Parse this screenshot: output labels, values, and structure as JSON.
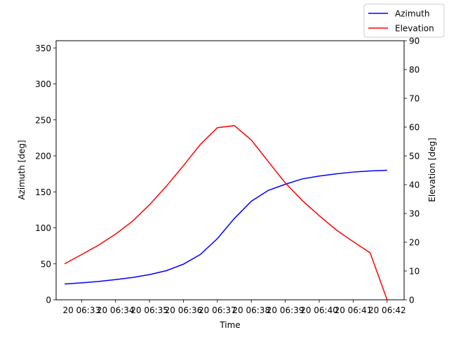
{
  "chart_data": {
    "type": "line",
    "xlabel": "Time",
    "ylabel_left": "Azimuth [deg]",
    "ylabel_right": "Elevation [deg]",
    "x": [
      "20 06:32:30",
      "20 06:33:00",
      "20 06:33:30",
      "20 06:34:00",
      "20 06:34:30",
      "20 06:35:00",
      "20 06:35:30",
      "20 06:36:00",
      "20 06:36:30",
      "20 06:37:00",
      "20 06:37:30",
      "20 06:38:00",
      "20 06:38:30",
      "20 06:39:00",
      "20 06:39:30",
      "20 06:40:00",
      "20 06:40:30",
      "20 06:41:00",
      "20 06:41:30",
      "20 06:42:00"
    ],
    "x_ticks": [
      "20 06:33",
      "20 06:34",
      "20 06:35",
      "20 06:36",
      "20 06:37",
      "20 06:38",
      "20 06:39",
      "20 06:40",
      "20 06:41",
      "20 06:42"
    ],
    "xlim": [
      "20 06:32:15",
      "20 06:42:30"
    ],
    "ylim_left": [
      0,
      360
    ],
    "ylim_right": [
      0,
      90
    ],
    "yticks_left": [
      0,
      50,
      100,
      150,
      200,
      250,
      300,
      350
    ],
    "yticks_right": [
      0,
      10,
      20,
      30,
      40,
      50,
      60,
      70,
      80,
      90
    ],
    "grid": false,
    "legend_position": "top-right",
    "series": [
      {
        "name": "Azimuth",
        "axis": "left",
        "color": "#0000ff",
        "values": [
          22,
          23.5,
          25.5,
          28,
          31,
          35,
          40.5,
          49.5,
          63,
          85,
          113,
          137,
          152,
          160.5,
          168,
          172,
          175,
          177.5,
          179,
          180
        ]
      },
      {
        "name": "Elevation",
        "axis": "right",
        "color": "#ff0000",
        "values": [
          12.5,
          15.7,
          19,
          22.8,
          27.3,
          33,
          39.5,
          46.6,
          54,
          59.8,
          60.5,
          55.5,
          48,
          40.6,
          34.5,
          29.2,
          24.3,
          20.2,
          16.3,
          0
        ]
      }
    ]
  }
}
